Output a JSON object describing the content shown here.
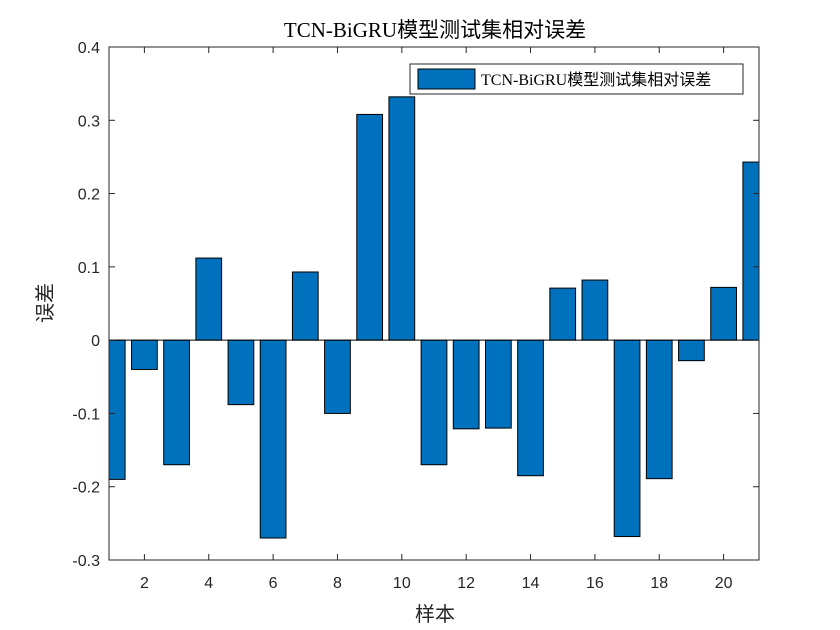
{
  "chart_data": {
    "type": "bar",
    "title": "TCN-BiGRU模型测试集相对误差",
    "xlabel": "样本",
    "ylabel": "误差",
    "x": [
      1,
      2,
      3,
      4,
      5,
      6,
      7,
      8,
      9,
      10,
      11,
      12,
      13,
      14,
      15,
      16,
      17,
      18,
      19,
      20,
      21
    ],
    "series": [
      {
        "name": "TCN-BiGRU模型测试集相对误差",
        "values": [
          -0.19,
          -0.04,
          -0.17,
          0.112,
          -0.088,
          -0.27,
          0.093,
          -0.1,
          0.308,
          0.332,
          -0.17,
          -0.121,
          -0.12,
          -0.185,
          0.071,
          0.082,
          -0.268,
          -0.189,
          -0.028,
          0.072,
          0.243
        ]
      }
    ],
    "xlim": [
      0.9,
      21.1
    ],
    "ylim": [
      -0.3,
      0.4
    ],
    "xticks": [
      "2",
      "4",
      "6",
      "8",
      "10",
      "12",
      "14",
      "16",
      "18",
      "20"
    ],
    "yticks": [
      "-0.3",
      "-0.2",
      "-0.1",
      "0",
      "0.1",
      "0.2",
      "0.3",
      "0.4"
    ],
    "legend_position": "top-right",
    "grid": false,
    "bar_color": "#0072BD",
    "bar_edge_color": "#000000"
  }
}
